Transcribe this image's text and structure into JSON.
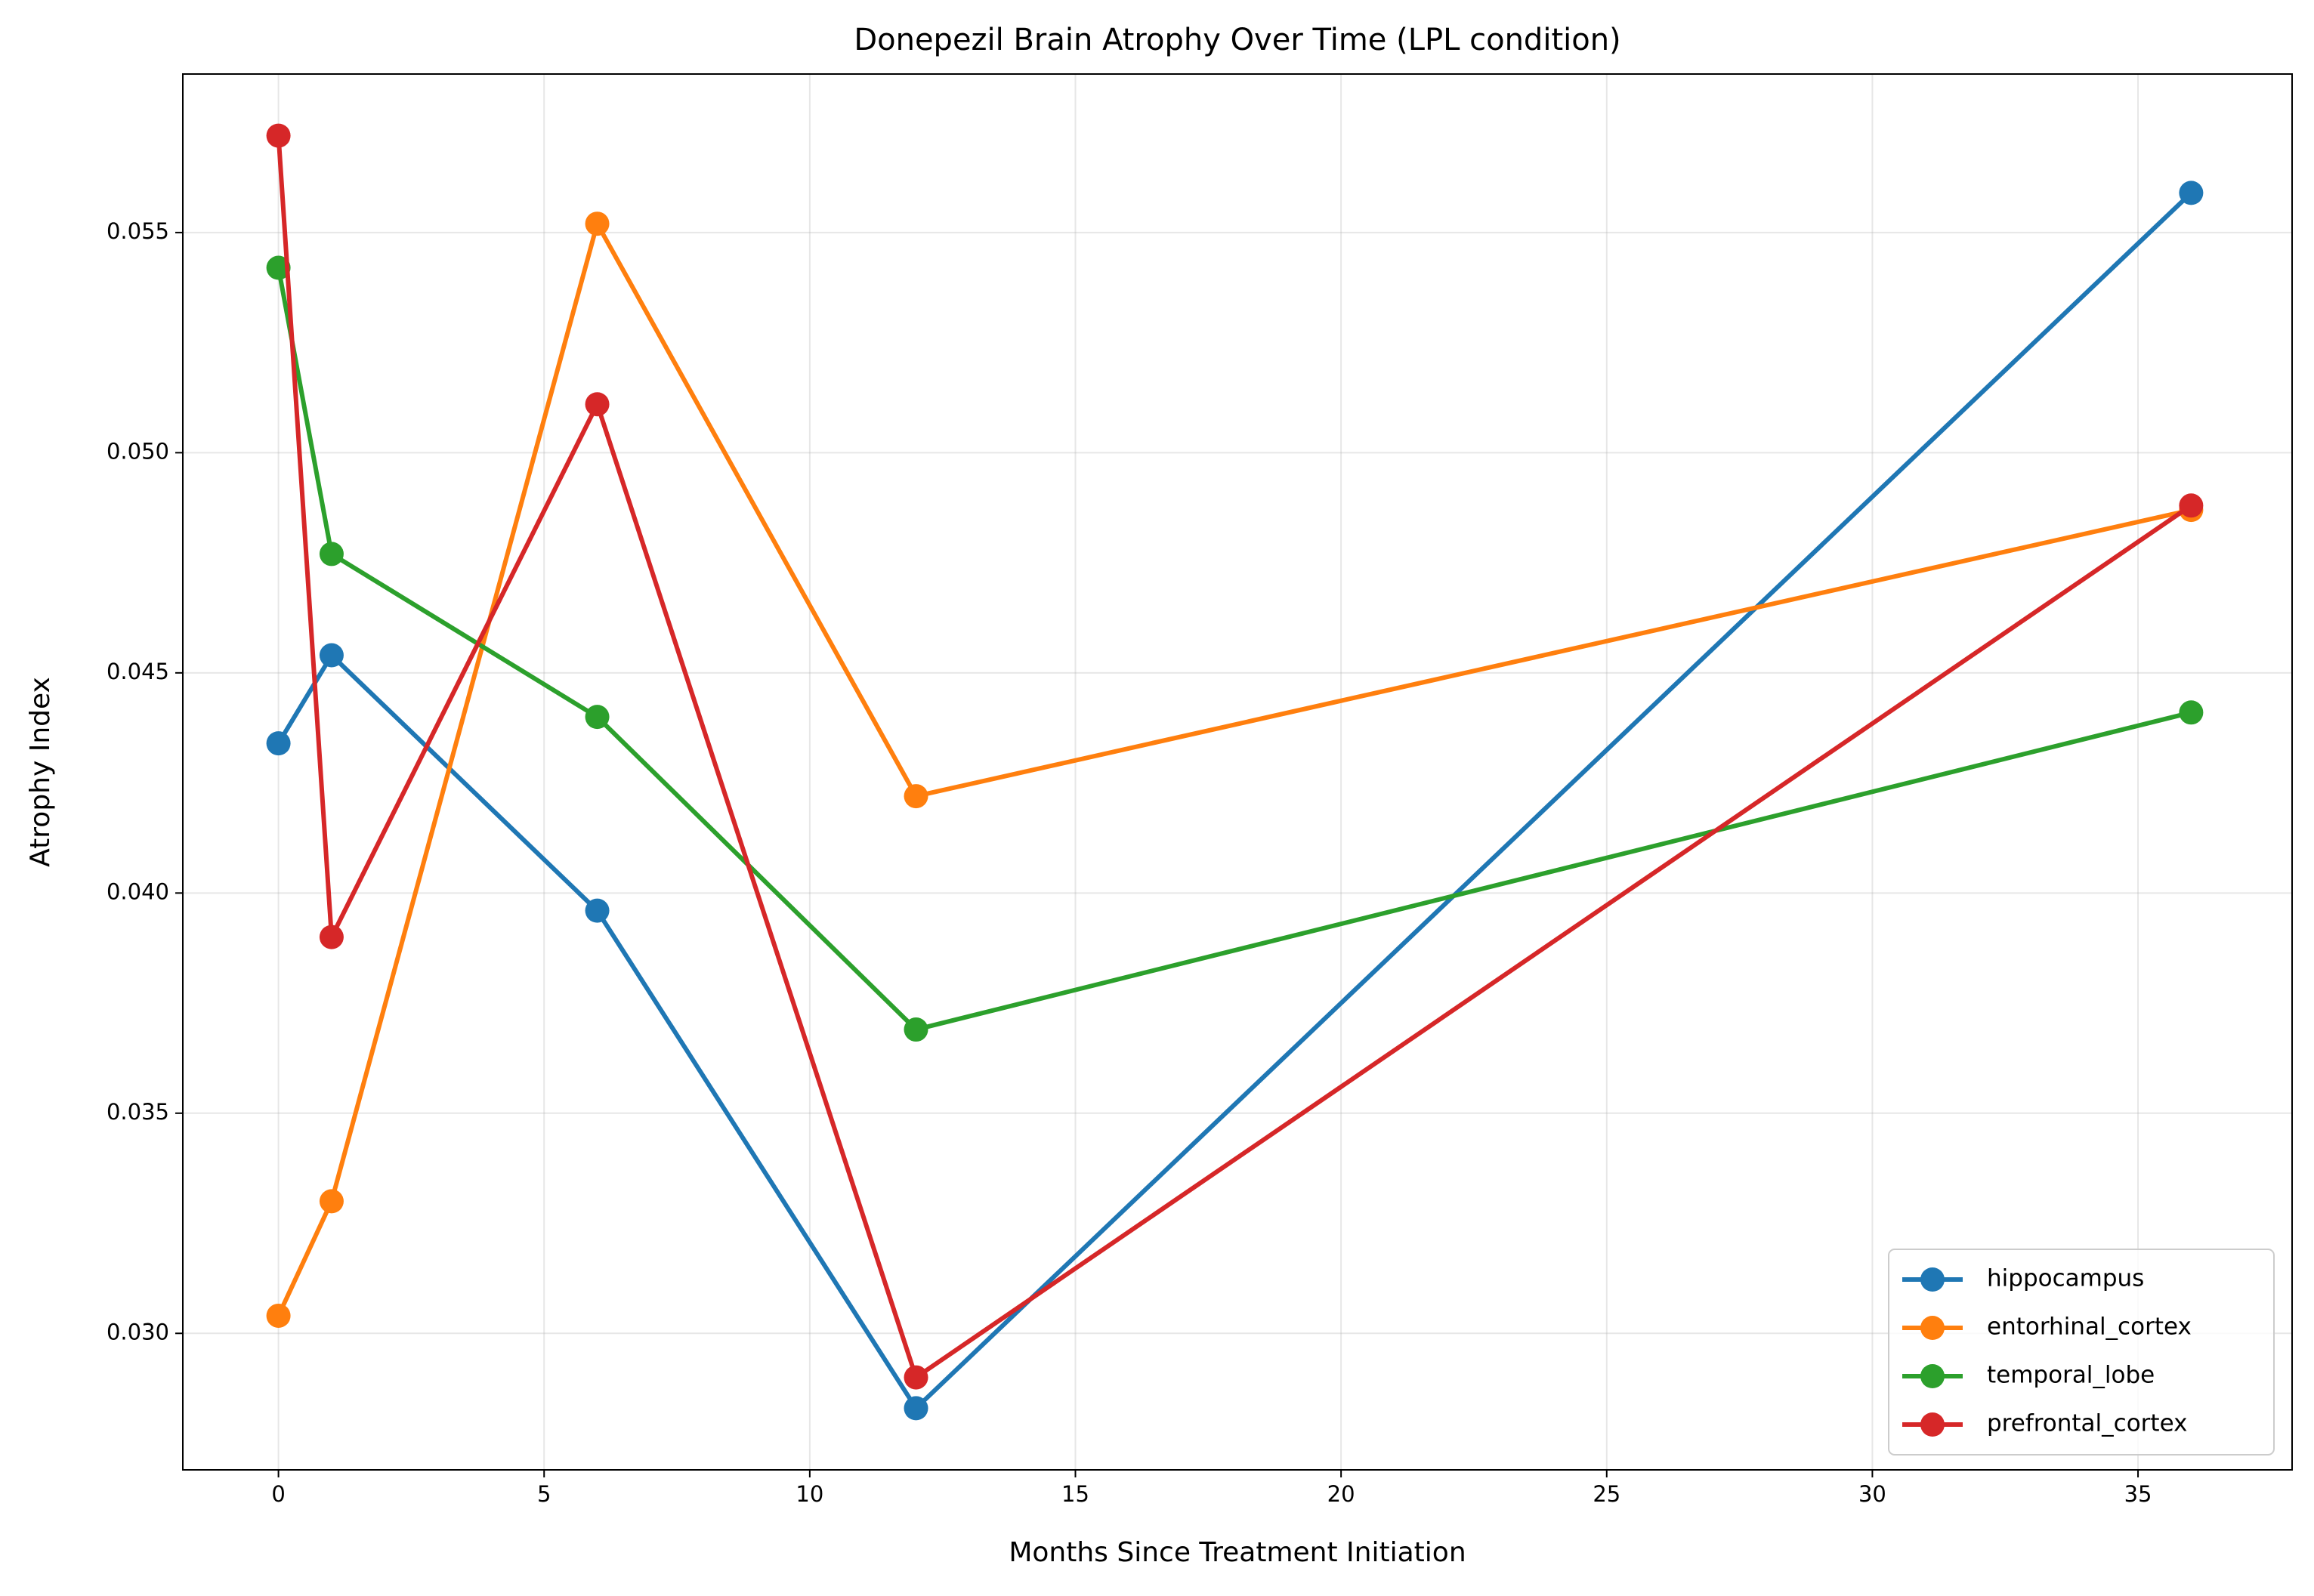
{
  "chart_data": {
    "type": "line",
    "title": "Donepezil Brain Atrophy Over Time (LPL condition)",
    "x_label": "Months Since Treatment Initiation",
    "y_label": "Atrophy Index",
    "x": [
      0,
      1,
      6,
      12,
      36
    ],
    "series": [
      {
        "name": "hippocampus",
        "color": "#1f77b4",
        "values": [
          0.0434,
          0.0454,
          0.0396,
          0.0283,
          0.0559
        ]
      },
      {
        "name": "entorhinal_cortex",
        "color": "#ff7f0e",
        "values": [
          0.0304,
          0.033,
          0.0552,
          0.0422,
          0.0487
        ]
      },
      {
        "name": "temporal_lobe",
        "color": "#2ca02c",
        "values": [
          0.0542,
          0.0477,
          0.044,
          0.0369,
          0.0441
        ]
      },
      {
        "name": "prefrontal_cortex",
        "color": "#d62728",
        "values": [
          0.0572,
          0.039,
          0.0511,
          0.029,
          0.0488
        ]
      }
    ],
    "xlim": [
      -1.8,
      37.9
    ],
    "ylim": [
      0.0269,
      0.0586
    ],
    "xticks": [
      0,
      5,
      10,
      15,
      20,
      25,
      30,
      35
    ],
    "yticks": [
      {
        "value": 0.03,
        "label": "0.030"
      },
      0.035,
      {
        "value": 0.04,
        "label": "0.040"
      },
      0.045,
      {
        "value": 0.05,
        "label": "0.050"
      },
      0.055
    ],
    "grid": true,
    "legend": "lower right"
  }
}
